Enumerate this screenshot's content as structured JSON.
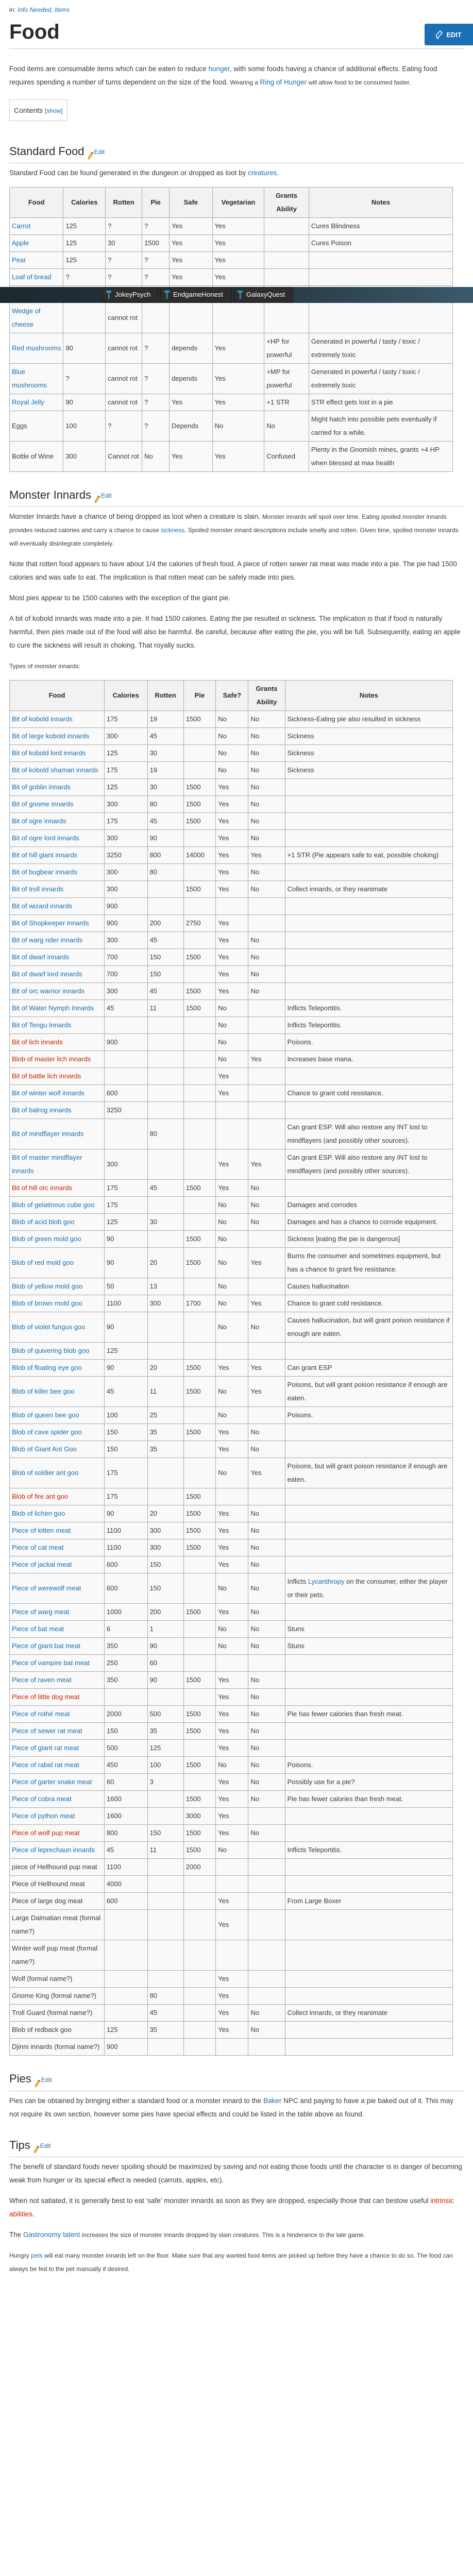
{
  "breadcrumb": {
    "prefix": "in:",
    "links": [
      "Info Needed,",
      "Items"
    ]
  },
  "title": "Food",
  "edit_label": "EDIT",
  "section_edit_label": "Edit",
  "intro": [
    {
      "t": "Food items are consumable items which can be eaten to reduce "
    },
    {
      "t": "hunger",
      "l": "blue"
    },
    {
      "t": ", with some foods having a chance of additional effects. Eating food requires spending a number of turns dependent on the size of the food. "
    },
    {
      "t": "Wearing a ",
      "s": true
    },
    {
      "t": "Ring of Hunger",
      "l": "blue"
    },
    {
      "t": " will allow food to be consumed faster.",
      "s": true
    }
  ],
  "contents": {
    "label": "Contents",
    "toggle": "[show]"
  },
  "toolbar": {
    "buttons": [
      "JokeyPsych",
      "EndgameHonest",
      "GalaxyQuest"
    ]
  },
  "standard_food": {
    "heading": "Standard Food",
    "para": [
      {
        "t": "Standard Food can be found generated in the dungeon or dropped as loot by "
      },
      {
        "t": "creatures",
        "l": "blue"
      },
      {
        "t": "."
      }
    ],
    "headers": [
      "Food",
      "Calories",
      "Rotten",
      "Pie",
      "Safe",
      "Vegetarian",
      "Grants Ability",
      "Notes"
    ],
    "rows": [
      [
        "Carrot",
        "blue",
        "125",
        "?",
        "?",
        "Yes",
        "Yes",
        "",
        "Cures Blindness"
      ],
      [
        "Apple",
        "blue",
        "125",
        "30",
        "1500",
        "Yes",
        "Yes",
        "",
        "Cures Poison"
      ],
      [
        "Pear",
        "blue",
        "125",
        "?",
        "?",
        "Yes",
        "Yes",
        "",
        ""
      ],
      [
        "Loaf of bread",
        "blue",
        "?",
        "?",
        "?",
        "Yes",
        "Yes",
        "",
        ""
      ],
      [
        "Wedge of cheese",
        "blue",
        "",
        "cannot rot",
        "",
        "",
        "",
        "",
        ""
      ],
      [
        "Red mushrooms",
        "blue",
        "90",
        "cannot rot",
        "?",
        "depends",
        "Yes",
        "+HP for powerful",
        "Generated in powerful / tasty / toxic / extremely toxic"
      ],
      [
        "Blue mushrooms",
        "blue",
        "?",
        "cannot rot",
        "?",
        "depends",
        "Yes",
        "+MP for powerful",
        "Generated in powerful / tasty / toxic / extremely toxic"
      ],
      [
        "Royal Jelly",
        "blue",
        "90",
        "cannot rot",
        "?",
        "Yes",
        "Yes",
        "+1 STR",
        "STR effect gets lost in a pie"
      ],
      [
        "Eggs",
        "",
        "100",
        "?",
        "?",
        "Depends",
        "No",
        "No",
        "Might hatch into possible pets eventually if carried for a while."
      ],
      [
        "Bottle of Wine",
        "",
        "300",
        "Cannot rot",
        "No",
        "Yes",
        "Yes",
        "Confused",
        "Plenty in the Gnomish mines, grants +4 HP when blessed at max health"
      ]
    ]
  },
  "monster_innards": {
    "heading": "Monster Innards",
    "paras": [
      [
        {
          "t": "Monster Innards have a chance of being dropped as loot when a creature is slain. "
        },
        {
          "t": "Monster innards will spoil over time. Eating spoiled monster innards provides reduced calories and carry a chance to cause ",
          "s": true
        },
        {
          "t": "sickness",
          "l": "blue",
          "s": true
        },
        {
          "t": ". Spoiled monster innard descriptions include smelly and rotten. Given time, spoiled monster innards will eventually disintegrate completely.",
          "s": true
        }
      ],
      [
        {
          "t": "Note that rotten food appears to have about 1/4 the calories of fresh food.  A piece of rotten sewer rat meat was made into a pie.  The pie had 1500 calories and was safe to eat.  The implication is that rotten meat can be safely made into pies."
        }
      ],
      [
        {
          "t": "Most pies appear to be 1500 calories with the exception of the giant pie."
        }
      ],
      [
        {
          "t": "A bit of kobold innards was made into a pie.  It had 1500 calories.  Eating the pie resulted in sickness.  The implication is that if food is naturally harmful, then pies made out of the food will also be harmful.  Be  careful, because after eating the pie, you will be full.  Subsequently, eating an apple to cure the sickness will result in choking.  That royally sucks."
        }
      ],
      [
        {
          "t": "Types of monster innards:",
          "s": true
        }
      ]
    ],
    "headers": [
      "Food",
      "Calories",
      "Rotten",
      "Pie",
      "Safe?",
      "Grants Ability",
      "Notes"
    ],
    "rows": [
      [
        "Bit of kobold innards",
        "blue",
        "175",
        "19",
        "1500",
        "No",
        "No",
        "Sickness-Eating pie also resulted in sickness"
      ],
      [
        "Bit of large kobold innards",
        "blue",
        "300",
        "45",
        "",
        "No",
        "No",
        "Sickness"
      ],
      [
        "Bit of kobold lord innards",
        "blue",
        "125",
        "30",
        "",
        "No",
        "No",
        "Sickness"
      ],
      [
        "Bit of kobold shaman innards",
        "blue",
        "175",
        "19",
        "",
        "No",
        "No",
        "Sickness"
      ],
      [
        "Bit of goblin innards",
        "blue",
        "125",
        "30",
        "1500",
        "Yes",
        "No",
        ""
      ],
      [
        "Bit of gnome innards",
        "blue",
        "300",
        "80",
        "1500",
        "Yes",
        "No",
        ""
      ],
      [
        "Bit of ogre innards",
        "blue",
        "175",
        "45",
        "1500",
        "Yes",
        "No",
        ""
      ],
      [
        "Bit of ogre lord innards",
        "blue",
        "300",
        "90",
        "",
        "Yes",
        "No",
        ""
      ],
      [
        "Bit of hill giant innards",
        "blue",
        "3250",
        "800",
        "14000",
        "Yes",
        "Yes",
        "+1 STR (Pie appears safe to eat, possible choking)"
      ],
      [
        "Bit of bugbear innards",
        "blue",
        "300",
        "80",
        "",
        "Yes",
        "No",
        ""
      ],
      [
        "Bit of troll innards",
        "blue",
        "300",
        "",
        "1500",
        "Yes",
        "No",
        "Collect innards, or they reanimate"
      ],
      [
        "Bit of wizard innards",
        "blue",
        "900",
        "",
        "",
        "",
        "",
        ""
      ],
      [
        "Bit of Shopkeeper innards",
        "blue",
        "900",
        "200",
        "2750",
        "Yes",
        "",
        ""
      ],
      [
        "Bit of warg rider innards",
        "blue",
        "300",
        "45",
        "",
        "Yes",
        "No",
        ""
      ],
      [
        "Bit of dwarf innards",
        "blue",
        "700",
        "150",
        "1500",
        "Yes",
        "No",
        ""
      ],
      [
        "Bit of dwarf lord innards",
        "blue",
        "700",
        "150",
        "",
        "Yes",
        "No",
        ""
      ],
      [
        "Bit of orc warrior innards",
        "blue",
        "300",
        "45",
        "1500",
        "Yes",
        "No",
        ""
      ],
      [
        "Bit of Water Nymph Innards",
        "blue",
        "45",
        "11",
        "1500",
        "No",
        "",
        "Inflicts Teleportitis."
      ],
      [
        "Bit of Tengu Innards",
        "blue",
        "",
        "",
        "",
        "No",
        "",
        "Inflicts Teleportitis."
      ],
      [
        "Bit of lich innards",
        "red",
        "900",
        "",
        "",
        "No",
        "",
        "Poisons."
      ],
      [
        "Blob of master lich innards",
        "red",
        "",
        "",
        "",
        "No",
        "Yes",
        "Increases base mana."
      ],
      [
        "Bit of battle lich innards",
        "red",
        "",
        "",
        "",
        "Yes",
        "",
        ""
      ],
      [
        "Bit of winter wolf innards",
        "blue",
        "600",
        "",
        "",
        "Yes",
        "",
        "Chance to grant cold resistance."
      ],
      [
        "Bit of balrog innards",
        "blue",
        "3250",
        "",
        "",
        "",
        "",
        ""
      ],
      [
        "Bit of mindflayer innards",
        "blue",
        "",
        "80",
        "",
        "",
        "",
        "Can grant ESP. Will also restore any INT lost to mindflayers (and possibly other sources)."
      ],
      [
        "Bit of master mindflayer innards",
        "blue",
        "300",
        "",
        "",
        "Yes",
        "Yes",
        "Can grant ESP. Will also restore any INT lost to mindflayers (and possibly other sources)."
      ],
      [
        "Bit of hill orc innards",
        "red",
        "175",
        "45",
        "1500",
        "Yes",
        "No",
        ""
      ],
      [
        "Blob of gelatinous cube goo",
        "blue",
        "175",
        "",
        "",
        "No",
        "No",
        "Damages and corrodes"
      ],
      [
        "Blob of acid blob goo",
        "blue",
        "125",
        "30",
        "",
        "No",
        "No",
        "Damages and has a chance to corrode equipment."
      ],
      [
        "Blob of green mold goo",
        "blue",
        "90",
        "",
        "1500",
        "No",
        "",
        "Sickness [eating the pie is dangerous]"
      ],
      [
        "Blob of red mold goo",
        "blue",
        "90",
        "20",
        "1500",
        "No",
        "Yes",
        "Burns the consumer and sometimes equipment, but has a chance to grant fire resistance."
      ],
      [
        "Blob of yellow mold goo",
        "blue",
        "50",
        "13",
        "",
        "No",
        "",
        "Causes hallucination"
      ],
      [
        "Blob of brown mold goo",
        "blue",
        "1100",
        "300",
        "1700",
        "No",
        "Yes",
        "Chance to grant cold resistance."
      ],
      [
        "Blob of violet fungus goo",
        "blue",
        "90",
        "",
        "",
        "No",
        "No",
        "Causes hallucination, but will grant poison resistance if enough are eaten."
      ],
      [
        "Blob of quivering blob goo",
        "blue",
        "125",
        "",
        "",
        "",
        "",
        ""
      ],
      [
        "Blob of floating eye goo",
        "blue",
        "90",
        "20",
        "1500",
        "Yes",
        "Yes",
        "Can grant ESP"
      ],
      [
        "Blob of killer bee goo",
        "blue",
        "45",
        "11",
        "1500",
        "No",
        "Yes",
        "Poisons, but will grant poison resistance if enough are eaten."
      ],
      [
        "Blob of queen bee goo",
        "blue",
        "100",
        "25",
        "",
        "No",
        "",
        "Poisons."
      ],
      [
        "Blob of cave spider goo",
        "blue",
        "150",
        "35",
        "1500",
        "Yes",
        "No",
        ""
      ],
      [
        "Blob of Giant Ant Goo",
        "blue",
        "150",
        "35",
        "",
        "Yes",
        "No",
        ""
      ],
      [
        "Blob of soldier ant goo",
        "blue",
        "175",
        "",
        "",
        "No",
        "Yes",
        "Poisons, but will grant poison resistance if enough are eaten."
      ],
      [
        "Blob of fire ant goo",
        "red",
        "175",
        "",
        "1500",
        "",
        "",
        ""
      ],
      [
        "Blob of lichen goo",
        "blue",
        "90",
        "20",
        "1500",
        "Yes",
        "No",
        ""
      ],
      [
        "Piece of kitten meat",
        "blue",
        "1100",
        "300",
        "1500",
        "Yes",
        "No",
        ""
      ],
      [
        "Piece of cat meat",
        "blue",
        "1100",
        "300",
        "1500",
        "Yes",
        "No",
        ""
      ],
      [
        "Piece of jackal meat",
        "blue",
        "600",
        "150",
        "",
        "Yes",
        "No",
        ""
      ],
      [
        "Piece of werewolf meat",
        "blue",
        "600",
        "150",
        "",
        "No",
        "No",
        [
          {
            "t": "Inflicts "
          },
          {
            "t": "Lycanthropy",
            "l": "blue"
          },
          {
            "t": " on the consumer, either the player or their pets."
          }
        ]
      ],
      [
        "Piece of warg meat",
        "blue",
        "1000",
        "200",
        "1500",
        "Yes",
        "No",
        ""
      ],
      [
        "Piece of bat meat",
        "blue",
        "6",
        "1",
        "",
        "No",
        "No",
        "Stuns"
      ],
      [
        "Piece of giant bat meat",
        "blue",
        "350",
        "90",
        "",
        "No",
        "No",
        "Stuns"
      ],
      [
        "Piece of vampire bat meat",
        "blue",
        "250",
        "60",
        "",
        "",
        "",
        ""
      ],
      [
        "Piece of raven meat",
        "blue",
        "350",
        "90",
        "1500",
        "Yes",
        "No",
        ""
      ],
      [
        "Piece of little dog meat",
        "red",
        "",
        "",
        "",
        "Yes",
        "No",
        ""
      ],
      [
        "Piece of rothé meat",
        "blue",
        "2000",
        "500",
        "1500",
        "Yes",
        "No",
        "Pie has fewer calories than fresh meat."
      ],
      [
        "Piece of sewer rat meat",
        "blue",
        "150",
        "35",
        "1500",
        "Yes",
        "No",
        ""
      ],
      [
        "Piece of giant rat meat",
        "blue",
        "500",
        "125",
        "",
        "Yes",
        "No",
        ""
      ],
      [
        "Piece of rabid rat meat",
        "blue",
        "450",
        "100",
        "1500",
        "No",
        "No",
        "Poisons."
      ],
      [
        "Piece of garter snake meat",
        "blue",
        "60",
        "3",
        "",
        "Yes",
        "No",
        "Possibly use for a pie?"
      ],
      [
        "Piece of cobra meat",
        "blue",
        "1600",
        "",
        "1500",
        "Yes",
        "No",
        "Pie has fewer calories than fresh meat."
      ],
      [
        "Piece of python meat",
        "blue",
        "1600",
        "",
        "3000",
        "Yes",
        "",
        ""
      ],
      [
        "Piece of wolf pup meat",
        "red",
        "800",
        "150",
        "1500",
        "Yes",
        "No",
        ""
      ],
      [
        "Piece of leprechaun innards",
        "blue",
        "45",
        "11",
        "1500",
        "No",
        "",
        "Inflicts Teleportitis."
      ],
      [
        "piece of Hellhound pup meat",
        "",
        "1100",
        "",
        "2000",
        "",
        "",
        ""
      ],
      [
        "Piece of Hellhound meat",
        "",
        "4000",
        "",
        "",
        "",
        "",
        ""
      ],
      [
        "Piece of large dog meat",
        "",
        "600",
        "",
        "",
        "Yes",
        "",
        "From Large Boxer"
      ],
      [
        "Large Dalmatian meat (formal name?)",
        "",
        "",
        "",
        "",
        "Yes",
        "",
        ""
      ],
      [
        "Winter wolf pup meat (formal name?)",
        "",
        "",
        "",
        "",
        "",
        "",
        ""
      ],
      [
        "Wolf (formal name?)",
        "",
        "",
        "",
        "",
        "Yes",
        "",
        ""
      ],
      [
        "Gnome King (formal name?)",
        "",
        "",
        "80",
        "",
        "Yes",
        "",
        ""
      ],
      [
        "Troll Guard (formal name?)",
        "",
        "",
        "45",
        "",
        "Yes",
        "No",
        "Collect innards, or they reanimate"
      ],
      [
        "Blob of redback goo",
        "",
        "125",
        "35",
        "",
        "Yes",
        "No",
        ""
      ],
      [
        "Djinni innards (formal name?)",
        "",
        "900",
        "",
        "",
        "",
        "",
        ""
      ]
    ]
  },
  "pies": {
    "heading": "Pies",
    "para": [
      {
        "t": "Pies can be obtained by bringing either a standard food or a monster innard to the "
      },
      {
        "t": "Baker",
        "l": "blue"
      },
      {
        "t": " NPC and paying to have a pie baked out of it. This may not require its own section, however some pies have special effects and could be listed in the table above as found."
      }
    ]
  },
  "tips": {
    "heading": "Tips",
    "paras": [
      [
        {
          "t": "The benefit of standard foods never spoiling should be maximized by saving and not eating those foods until the character is in danger of becoming weak from hunger or its special effect is needed (carrots, apples, etc)."
        }
      ],
      [
        {
          "t": "When not satiated, it is generally best to eat 'safe' monster innards as soon as they are dropped, especially those that can bestow useful "
        },
        {
          "t": "intrinsic abilities",
          "l": "red"
        },
        {
          "t": "."
        }
      ],
      [
        {
          "t": "The "
        },
        {
          "t": "Gastronomy talent",
          "l": "blue"
        },
        {
          "t": " increases the size of monster innards dropped by slain creatures. This is a hinderance to the late game.",
          "s": true
        }
      ],
      [
        {
          "t": "Hungry ",
          "s": true
        },
        {
          "t": "pets",
          "l": "blue",
          "s": true
        },
        {
          "t": " will eat many monster innards left on the floor. Make sure that any wanted food items are picked up before they have a chance to do so. The food can always be fed to the pet manually if desired.",
          "s": true
        }
      ]
    ]
  },
  "colors": {
    "link": "#1a6fb0",
    "redlink": "#cc2200",
    "edit_button": "#1a6fb5"
  }
}
